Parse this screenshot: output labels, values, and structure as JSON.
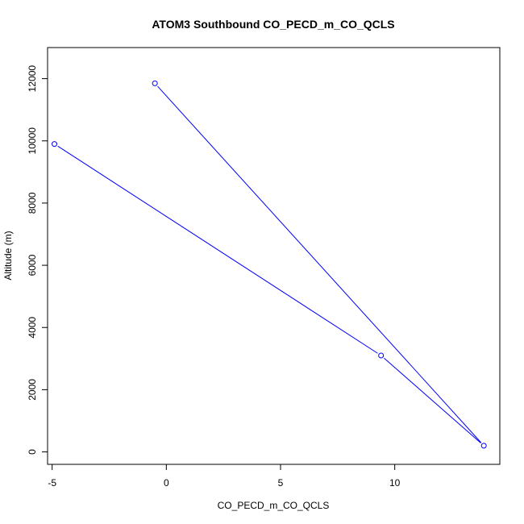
{
  "chart_data": {
    "type": "line",
    "title": "ATOM3 Southbound CO_PECD_m_CO_QCLS",
    "xlabel": "CO_PECD_m_CO_QCLS",
    "ylabel": "Altitude (m)",
    "xlim": [
      -5.2,
      14.6
    ],
    "ylim": [
      -400,
      13000
    ],
    "xticks": [
      -5,
      0,
      5,
      10
    ],
    "xtick_labels": [
      "-5",
      "0",
      "5",
      "10"
    ],
    "yticks": [
      0,
      2000,
      4000,
      6000,
      8000,
      10000,
      12000
    ],
    "ytick_labels": [
      "0",
      "2000",
      "4000",
      "6000",
      "8000",
      "10000",
      "12000"
    ],
    "grid": false,
    "legend": "none",
    "series": [
      {
        "color": "#0000ff",
        "marker": "open-circle",
        "points": [
          {
            "x": -4.9,
            "y": 9900
          },
          {
            "x": 9.4,
            "y": 3100
          },
          {
            "x": 13.9,
            "y": 200
          },
          {
            "x": -0.5,
            "y": 11850
          }
        ]
      }
    ]
  }
}
